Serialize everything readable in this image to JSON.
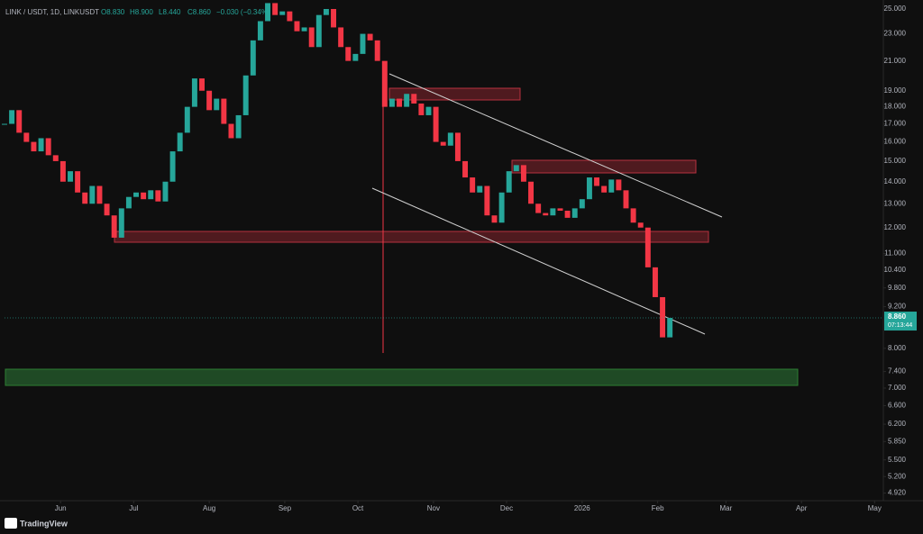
{
  "chart_data": {
    "type": "candlestick",
    "symbol": "LINK / USDT, 1D, LINKUSDT",
    "ohlc_header": [
      "O8.830",
      "H8.900",
      "L8.440",
      "C8.860",
      "−0.030 (−0.34%)"
    ],
    "last_price": {
      "value": 8.86,
      "label": "8.860"
    },
    "countdown": "07:13:44",
    "brand": "TradingView",
    "log_scale": true,
    "up_color": "#26a69a",
    "down_color": "#f23645",
    "x": [
      0,
      3,
      6,
      9,
      12,
      15,
      18,
      21,
      24,
      27,
      30,
      33,
      36,
      39,
      42,
      45,
      48,
      51,
      54,
      57,
      60,
      63,
      66,
      69,
      72,
      75,
      78,
      81,
      84,
      87,
      90,
      93,
      96,
      99,
      102,
      105,
      108,
      111,
      114,
      117,
      120,
      123,
      126,
      129,
      132,
      135,
      138,
      141,
      144,
      147,
      150,
      153,
      156,
      159,
      162,
      165,
      168,
      171,
      174,
      177,
      180,
      183,
      186,
      189,
      192,
      195,
      198,
      201,
      204,
      207,
      210,
      213,
      216,
      219,
      222,
      225,
      228,
      231,
      234,
      237,
      240,
      243,
      246,
      249,
      252,
      255,
      258,
      261,
      264,
      267,
      270,
      273
    ],
    "values": [
      17.0,
      17.8,
      16.5,
      16.0,
      15.5,
      16.2,
      15.3,
      15.0,
      14.0,
      14.5,
      13.5,
      13.0,
      13.8,
      13.0,
      12.5,
      11.6,
      12.8,
      13.3,
      13.5,
      13.2,
      13.6,
      13.1,
      14.0,
      15.5,
      16.5,
      18.0,
      19.8,
      19.0,
      17.8,
      18.5,
      17.0,
      16.2,
      17.5,
      20.0,
      22.5,
      24.0,
      25.5,
      24.5,
      24.8,
      24.0,
      23.2,
      23.5,
      22.0,
      24.5,
      25.0,
      23.5,
      22.0,
      21.0,
      21.5,
      23.0,
      22.5,
      21.0,
      18.0,
      18.5,
      18.0,
      18.8,
      18.2,
      17.5,
      18.0,
      16.0,
      15.8,
      16.5,
      15.0,
      14.2,
      13.5,
      13.8,
      12.5,
      12.2,
      13.5,
      14.5,
      14.8,
      14.0,
      13.0,
      12.6,
      12.5,
      12.8,
      12.7,
      12.4,
      12.8,
      13.2,
      14.2,
      13.8,
      13.5,
      14.1,
      13.6,
      12.8,
      12.2,
      12.0,
      10.5,
      9.5,
      8.3,
      8.86
    ],
    "xlim": [
      0,
      358
    ],
    "xticks": [
      {
        "value": 23,
        "label": "Jun"
      },
      {
        "value": 53,
        "label": "Jul"
      },
      {
        "value": 84,
        "label": "Aug"
      },
      {
        "value": 115,
        "label": "Sep"
      },
      {
        "value": 145,
        "label": "Oct"
      },
      {
        "value": 176,
        "label": "Nov"
      },
      {
        "value": 206,
        "label": "Dec"
      },
      {
        "value": 237,
        "label": "2026"
      },
      {
        "value": 268,
        "label": "Feb"
      },
      {
        "value": 296,
        "label": "Mar"
      },
      {
        "value": 327,
        "label": "Apr"
      },
      {
        "value": 357,
        "label": "May"
      }
    ],
    "ylim": [
      4.84,
      25.38
    ],
    "yticks": [
      {
        "value": 25,
        "label": "25.000"
      },
      {
        "value": 23,
        "label": "23.000"
      },
      {
        "value": 21,
        "label": "21.000"
      },
      {
        "value": 19,
        "label": "19.000"
      },
      {
        "value": 18,
        "label": "18.000"
      },
      {
        "value": 17,
        "label": "17.000"
      },
      {
        "value": 16,
        "label": "16.000"
      },
      {
        "value": 15,
        "label": "15.000"
      },
      {
        "value": 14,
        "label": "14.000"
      },
      {
        "value": 13,
        "label": "13.000"
      },
      {
        "value": 12,
        "label": "12.000"
      },
      {
        "value": 11,
        "label": "11.000"
      },
      {
        "value": 10.4,
        "label": "10.400"
      },
      {
        "value": 9.8,
        "label": "9.800"
      },
      {
        "value": 9.2,
        "label": "9.200"
      },
      {
        "value": 8,
        "label": "8.000"
      },
      {
        "value": 7.4,
        "label": "7.400"
      },
      {
        "value": 7,
        "label": "7.000"
      },
      {
        "value": 6.6,
        "label": "6.600"
      },
      {
        "value": 6.2,
        "label": "6.200"
      },
      {
        "value": 5.85,
        "label": "5.850"
      },
      {
        "value": 5.5,
        "label": "5.500"
      },
      {
        "value": 5.2,
        "label": "5.200"
      },
      {
        "value": 4.92,
        "label": "4.920"
      }
    ]
  }
}
